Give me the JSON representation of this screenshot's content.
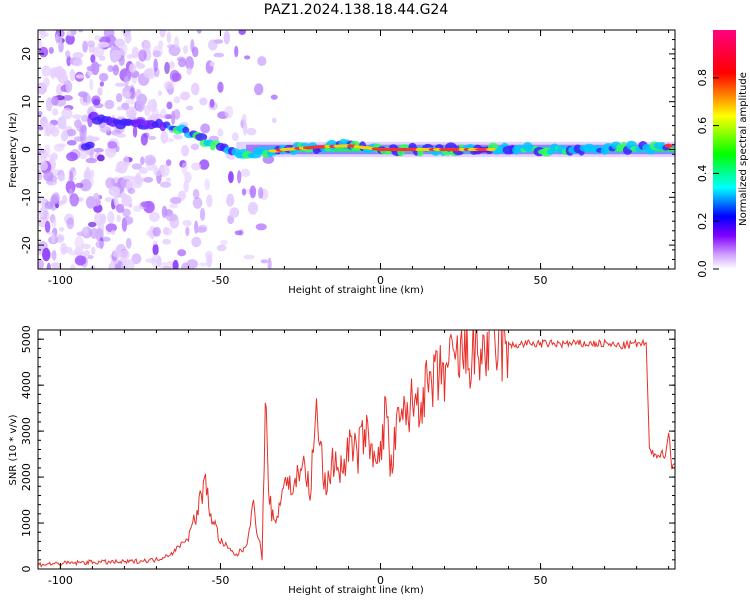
{
  "title": "PAZ1.2024.138.18.44.G24",
  "chart_data": [
    {
      "type": "heatmap",
      "xlabel": "Height of straight line (km)",
      "ylabel": "Frequency (Hz)",
      "xlim": [
        -107,
        92
      ],
      "ylim": [
        -25,
        25
      ],
      "xticks": [
        -100,
        -50,
        0,
        50
      ],
      "yticks": [
        -20,
        -10,
        0,
        10,
        20
      ],
      "colorbar": {
        "label": "Normalized spectral amplitude",
        "ticks": [
          "0.0",
          "0.2",
          "0.4",
          "0.6",
          "0.8"
        ],
        "range": [
          0,
          1
        ],
        "colors": [
          "#ffffff",
          "#8000ff",
          "#0000ff",
          "#00ffff",
          "#00ff00",
          "#ffff00",
          "#ff0000",
          "#ff00ff"
        ]
      },
      "ridge": [
        {
          "x": -90,
          "y": 6.5
        },
        {
          "x": -80,
          "y": 5.5
        },
        {
          "x": -70,
          "y": 5.0
        },
        {
          "x": -62,
          "y": 4.0
        },
        {
          "x": -58,
          "y": 3.0
        },
        {
          "x": -55,
          "y": 1.5
        },
        {
          "x": -50,
          "y": 0.5
        },
        {
          "x": -45,
          "y": -0.5
        },
        {
          "x": -40,
          "y": -1.0
        },
        {
          "x": -35,
          "y": -0.5
        },
        {
          "x": -30,
          "y": 0.0
        },
        {
          "x": -20,
          "y": 0.5
        },
        {
          "x": -10,
          "y": 0.8
        },
        {
          "x": 0,
          "y": 0.0
        },
        {
          "x": 10,
          "y": 0.0
        },
        {
          "x": 30,
          "y": 0.0
        },
        {
          "x": 50,
          "y": 0.0
        },
        {
          "x": 92,
          "y": 0.5
        }
      ]
    },
    {
      "type": "line",
      "xlabel": "Height of straight line (km)",
      "ylabel": "SNR (10 * v/v)",
      "xlim": [
        -107,
        92
      ],
      "ylim": [
        0,
        5200
      ],
      "xticks": [
        -100,
        -50,
        0,
        50
      ],
      "yticks": [
        0,
        1000,
        2000,
        3000,
        4000,
        5000
      ],
      "color": "#e8302a",
      "series": [
        {
          "x": [
            -107,
            -100,
            -90,
            -80,
            -70,
            -65,
            -60,
            -57,
            -55,
            -53,
            -50,
            -47,
            -45,
            -42,
            -40,
            -38,
            -37,
            -36,
            -35,
            -33,
            -30,
            -27,
            -25,
            -22,
            -20,
            -17,
            -15,
            -12,
            -10,
            -7,
            -5,
            -3,
            -1,
            0,
            2,
            3,
            5,
            8,
            10,
            15,
            20,
            25,
            30,
            35,
            40,
            45,
            50,
            55,
            60,
            65,
            70,
            75,
            80,
            83,
            84,
            85,
            87,
            89,
            90,
            91,
            92
          ],
          "y": [
            100,
            120,
            150,
            150,
            200,
            350,
            700,
            1300,
            1900,
            1200,
            600,
            400,
            300,
            500,
            1400,
            700,
            200,
            3800,
            1600,
            900,
            2000,
            1700,
            2400,
            1700,
            3400,
            1600,
            2400,
            2100,
            2700,
            2500,
            3100,
            2500,
            2700,
            2400,
            3700,
            2000,
            3000,
            3400,
            3600,
            3900,
            4300,
            4600,
            4700,
            4800,
            4850,
            4900,
            4900,
            4900,
            4900,
            4900,
            4900,
            4850,
            4900,
            4900,
            2600,
            2500,
            2500,
            2500,
            3000,
            2200,
            2300
          ]
        }
      ]
    }
  ]
}
